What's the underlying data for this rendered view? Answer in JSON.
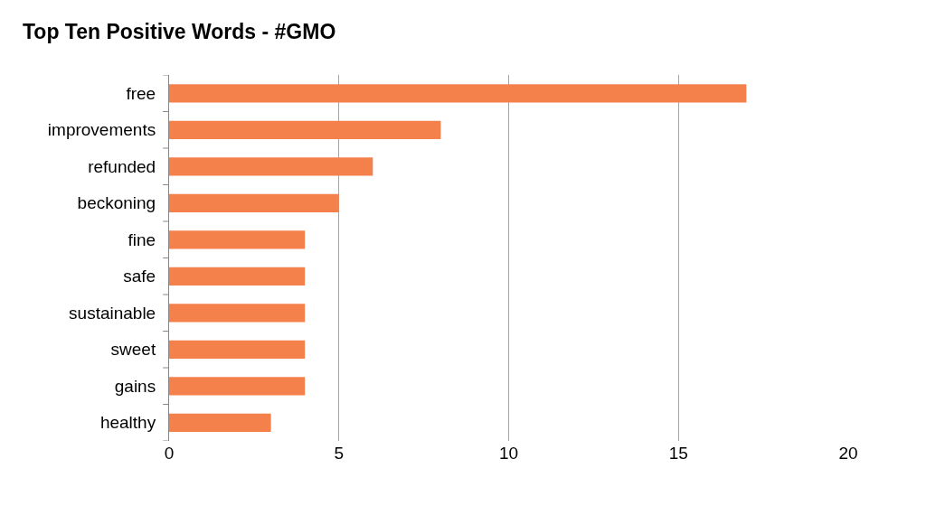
{
  "chart_data": {
    "type": "bar",
    "orientation": "horizontal",
    "title": "Top Ten Positive Words - #GMO",
    "categories": [
      "free",
      "improvements",
      "refunded",
      "beckoning",
      "fine",
      "safe",
      "sustainable",
      "sweet",
      "gains",
      "healthy"
    ],
    "values": [
      17,
      8,
      6,
      5,
      4,
      4,
      4,
      4,
      4,
      3
    ],
    "color": "#f4814c",
    "xlim": [
      0,
      20
    ],
    "xticks": [
      0,
      5,
      10,
      15,
      20
    ],
    "grid": "x",
    "legend": false
  }
}
